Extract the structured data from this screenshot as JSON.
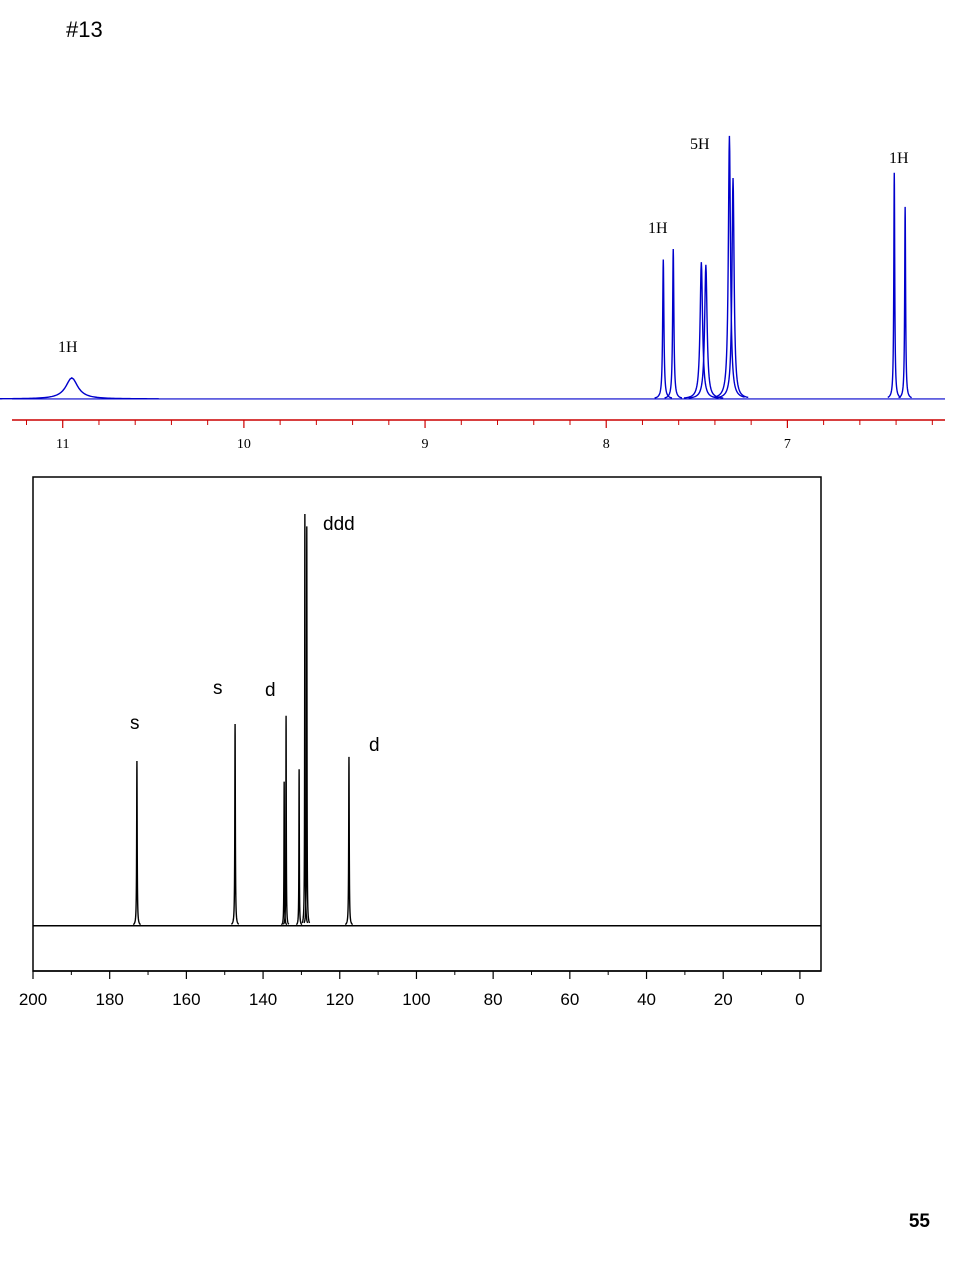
{
  "header": {
    "title": "#13"
  },
  "footer": {
    "page_number": "55"
  },
  "chart_data": [
    {
      "type": "spectrum",
      "color": "#0000cc",
      "axis_color": "#cc0000",
      "xlim": [
        11.28,
        6.13
      ],
      "ylim": [
        -8,
        103
      ],
      "xticks": [
        11,
        10,
        9,
        8,
        7
      ],
      "minor_divisions": 5,
      "annotations": [
        "1H",
        "1H",
        "5H",
        "1H"
      ],
      "peaks": {
        "x": [
          10.95,
          7.685,
          7.63,
          7.475,
          7.45,
          7.32,
          7.3,
          6.41,
          6.35
        ],
        "values": [
          8,
          53,
          57,
          52,
          51,
          100,
          84,
          86,
          73
        ],
        "widths": [
          0.04,
          0.004,
          0.004,
          0.008,
          0.008,
          0.007,
          0.007,
          0.003,
          0.003
        ]
      }
    },
    {
      "type": "spectrum",
      "color": "#000000",
      "axis_color": "#000000",
      "xlim": [
        200,
        -5.5
      ],
      "ylim": [
        -11,
        109
      ],
      "xticks": [
        200,
        180,
        160,
        140,
        120,
        100,
        80,
        60,
        40,
        20,
        0
      ],
      "minor_divisions": 2,
      "annotations": [
        "s",
        "s",
        "d",
        "ddd",
        "d"
      ],
      "peaks": {
        "x": [
          172.9,
          147.3,
          134.5,
          134.0,
          130.6,
          129.1,
          128.6,
          117.6
        ],
        "values": [
          40,
          49,
          35,
          51,
          38,
          100,
          97,
          41
        ],
        "widths": [
          0.08,
          0.08,
          0.06,
          0.06,
          0.06,
          0.06,
          0.06,
          0.08
        ]
      }
    }
  ]
}
